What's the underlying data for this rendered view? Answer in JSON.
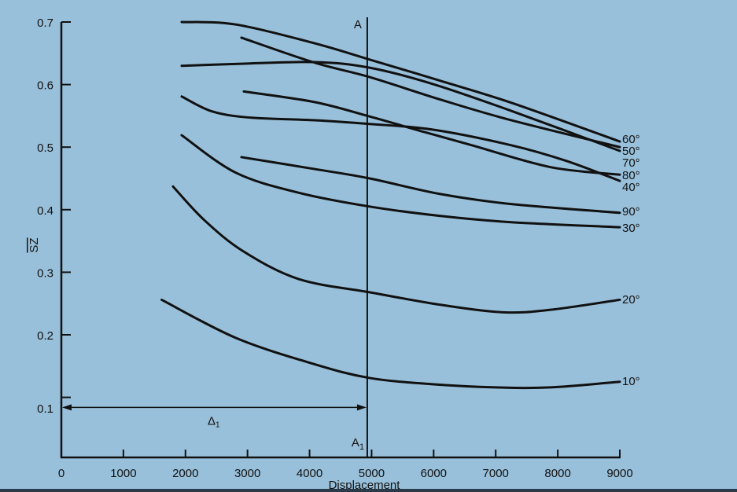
{
  "chart_data": {
    "type": "line",
    "title": "",
    "xlabel": "Displacement",
    "ylabel": "SZ",
    "xlim": [
      0,
      9000
    ],
    "ylim": [
      0.03,
      0.7
    ],
    "xticks": [
      "0",
      "1000",
      "2000",
      "3000",
      "4000",
      "5000",
      "6000",
      "7000",
      "8000",
      "9000"
    ],
    "yticks": [
      "0.1",
      "0.2",
      "0.3",
      "0.4",
      "0.5",
      "0.6",
      "0.7"
    ],
    "grid": false,
    "legend": "labels at right end of each curve",
    "series": [
      {
        "name": "60°",
        "x": [
          1939,
          2814,
          4081,
          4968,
          6109,
          7250,
          9000
        ],
        "y": [
          0.7,
          0.696,
          0.666,
          0.64,
          0.606,
          0.571,
          0.509
        ]
      },
      {
        "name": "50°",
        "x": [
          1939,
          2814,
          4081,
          4968,
          5982,
          7250,
          9000
        ],
        "y": [
          0.63,
          0.633,
          0.636,
          0.627,
          0.601,
          0.558,
          0.494
        ]
      },
      {
        "name": "70°",
        "x": [
          2902,
          4081,
          4968,
          6109,
          7250,
          9000
        ],
        "y": [
          0.675,
          0.635,
          0.612,
          0.576,
          0.543,
          0.5
        ]
      },
      {
        "name": "80°",
        "x": [
          2940,
          4081,
          4968,
          5855,
          6616,
          7883,
          9000
        ],
        "y": [
          0.589,
          0.572,
          0.549,
          0.524,
          0.503,
          0.468,
          0.456
        ]
      },
      {
        "name": "40°",
        "x": [
          1939,
          2433,
          3067,
          4081,
          4968,
          5982,
          7250,
          8137,
          9000
        ],
        "y": [
          0.581,
          0.557,
          0.547,
          0.543,
          0.537,
          0.528,
          0.503,
          0.478,
          0.446
        ]
      },
      {
        "name": "90°",
        "x": [
          2902,
          4081,
          4968,
          6109,
          7250,
          9000
        ],
        "y": [
          0.484,
          0.465,
          0.45,
          0.425,
          0.409,
          0.395
        ]
      },
      {
        "name": "30°",
        "x": [
          1939,
          2814,
          3828,
          4968,
          6109,
          7250,
          9000
        ],
        "y": [
          0.519,
          0.459,
          0.427,
          0.405,
          0.39,
          0.38,
          0.372
        ]
      },
      {
        "name": "20°",
        "x": [
          1800,
          2307,
          2940,
          3828,
          4968,
          6109,
          7123,
          7883,
          9000
        ],
        "y": [
          0.437,
          0.383,
          0.333,
          0.289,
          0.268,
          0.248,
          0.236,
          0.24,
          0.256
        ]
      },
      {
        "name": "10°",
        "x": [
          1617,
          2814,
          4081,
          4968,
          5982,
          6996,
          7883,
          9000
        ],
        "y": [
          0.256,
          0.195,
          0.153,
          0.131,
          0.121,
          0.116,
          0.116,
          0.125
        ]
      }
    ],
    "annotations": {
      "section_line_x": 4930,
      "top_label": "A",
      "bottom_label": "A",
      "bottom_label_sub": "1",
      "delta_label": "Δ",
      "delta_sub": "1",
      "delta_y": 0.084
    }
  }
}
